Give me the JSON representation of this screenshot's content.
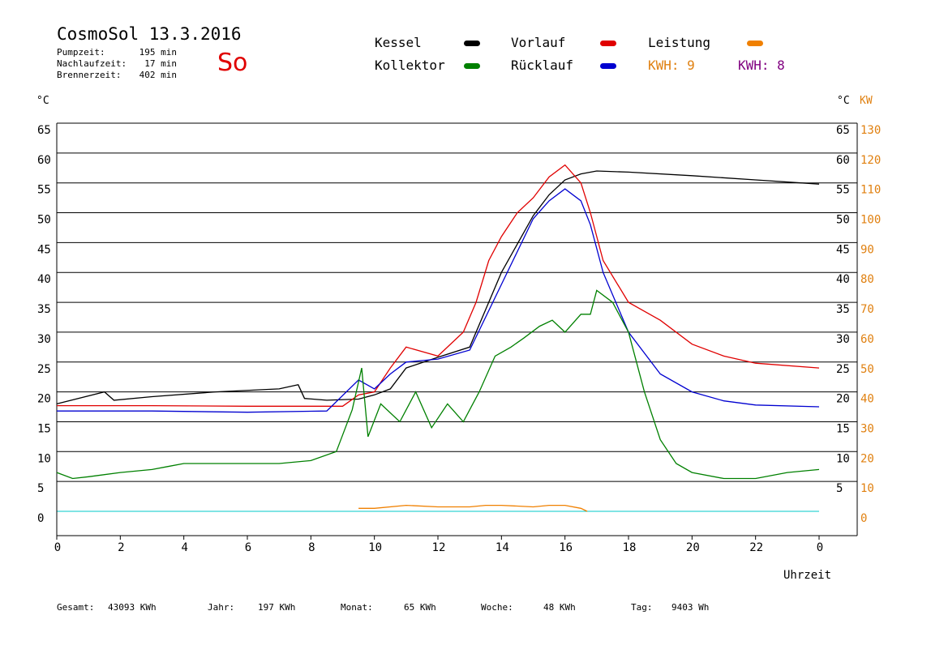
{
  "header": {
    "title": "CosmoSol 13.3.2016",
    "day": "So",
    "info": [
      {
        "label": "Pumpzeit:",
        "value": "195 min"
      },
      {
        "label": "Nachlaufzeit:",
        "value": "17 min"
      },
      {
        "label": "Brennerzeit:",
        "value": "402 min"
      }
    ]
  },
  "legend": {
    "kessel": {
      "label": "Kessel",
      "color": "#000000"
    },
    "vorlauf": {
      "label": "Vorlauf",
      "color": "#e00000"
    },
    "leistung": {
      "label": "Leistung",
      "color": "#f08000"
    },
    "kollektor": {
      "label": "Kollektor",
      "color": "#008000"
    },
    "ruecklauf": {
      "label": "Rücklauf",
      "color": "#0000d0"
    },
    "kwh1": {
      "label": "KWH: 9",
      "color": "#e08010"
    },
    "kwh2": {
      "label": "KWH: 8",
      "color": "#800080"
    }
  },
  "axes": {
    "left_unit": "°C",
    "right_unit_c": "°C",
    "right_unit_kw": "KW",
    "xlabel": "Uhrzeit"
  },
  "footer": [
    {
      "label": "Gesamt:",
      "value": "43093 KWh"
    },
    {
      "label": "Jahr:",
      "value": "197 KWh"
    },
    {
      "label": "Monat:",
      "value": "65 KWh"
    },
    {
      "label": "Woche:",
      "value": "48 KWh"
    },
    {
      "label": "Tag:",
      "value": "9403 Wh"
    }
  ],
  "chart_data": {
    "type": "line",
    "xlabel": "Uhrzeit",
    "ylabel": "°C",
    "y2label": "KW",
    "xlim": [
      0,
      24
    ],
    "ylim": [
      0,
      65
    ],
    "y2lim": [
      0,
      130
    ],
    "xticks": [
      "0",
      "2",
      "4",
      "6",
      "8",
      "10",
      "12",
      "14",
      "16",
      "18",
      "20",
      "22",
      "0"
    ],
    "yticks_left": [
      0,
      5,
      10,
      15,
      20,
      25,
      30,
      35,
      40,
      45,
      50,
      55,
      60,
      65
    ],
    "yticks_right_c": [
      5,
      10,
      15,
      20,
      25,
      30,
      35,
      40,
      45,
      50,
      55,
      60,
      65
    ],
    "yticks_right_kw": [
      0,
      10,
      20,
      30,
      40,
      50,
      60,
      70,
      80,
      90,
      100,
      110,
      120,
      130
    ],
    "grid": true,
    "series": [
      {
        "name": "Kessel",
        "color": "#000000",
        "x": [
          0,
          1.5,
          1.8,
          3,
          5,
          7,
          7.6,
          7.8,
          8.5,
          9.5,
          10,
          10.5,
          11,
          12,
          13,
          14,
          15,
          15.5,
          16,
          16.5,
          17,
          18,
          20,
          22,
          24
        ],
        "y": [
          18,
          20,
          18.6,
          19.2,
          20,
          20.5,
          21.2,
          18.9,
          18.6,
          18.8,
          19.5,
          20.5,
          24,
          25.8,
          27.5,
          40,
          49.5,
          53,
          55.5,
          56.5,
          57,
          56.8,
          56.2,
          55.5,
          54.8
        ]
      },
      {
        "name": "Vorlauf",
        "color": "#e00000",
        "x": [
          0,
          3,
          6,
          9,
          9.5,
          10,
          10.5,
          11,
          12,
          12.8,
          13.2,
          13.6,
          14,
          14.5,
          15,
          15.5,
          16,
          16.5,
          16.8,
          17.2,
          18,
          19,
          20,
          21,
          22,
          24
        ],
        "y": [
          17.7,
          17.7,
          17.6,
          17.6,
          19.5,
          20,
          24,
          27.5,
          26,
          30,
          35,
          42,
          46,
          50,
          52.5,
          56,
          58,
          55,
          50,
          42,
          35,
          32,
          28,
          26,
          24.8,
          24
        ]
      },
      {
        "name": "Rücklauf",
        "color": "#0000d0",
        "x": [
          0,
          3,
          6,
          8.5,
          9.5,
          10,
          10.5,
          11,
          12,
          13,
          14,
          15,
          15.5,
          16,
          16.5,
          16.8,
          17.2,
          18,
          19,
          20,
          21,
          22,
          24
        ],
        "y": [
          16.8,
          16.8,
          16.6,
          16.8,
          22,
          20.5,
          23,
          25,
          25.5,
          27,
          38,
          49,
          52,
          54,
          52,
          48,
          40,
          30,
          23,
          20,
          18.5,
          17.8,
          17.5
        ]
      },
      {
        "name": "Kollektor",
        "color": "#008000",
        "x": [
          0,
          0.5,
          1,
          2,
          3,
          3.5,
          4,
          5,
          6,
          7,
          8,
          8.8,
          9.3,
          9.6,
          9.8,
          10.2,
          10.8,
          11.3,
          11.8,
          12.3,
          12.8,
          13.3,
          13.8,
          14.3,
          14.7,
          15.2,
          15.6,
          16,
          16.5,
          16.8,
          17,
          17.5,
          18,
          18.5,
          19,
          19.5,
          20,
          21,
          22,
          23,
          24
        ],
        "y": [
          6.5,
          5.5,
          5.8,
          6.5,
          7,
          7.5,
          8,
          8,
          8,
          8,
          8.5,
          10,
          17,
          24,
          12.5,
          18,
          15,
          20,
          14,
          18,
          15,
          20,
          26,
          27.5,
          29,
          31,
          32,
          30,
          33,
          33,
          37,
          35,
          30,
          20,
          12,
          8,
          6.5,
          5.5,
          5.5,
          6.5,
          7
        ]
      },
      {
        "name": "Leistung",
        "color": "#f08000",
        "axis": "right",
        "x": [
          9.5,
          10,
          11,
          12,
          13,
          13.5,
          14,
          15,
          15.5,
          16,
          16.5,
          16.7
        ],
        "y": [
          1,
          1,
          2,
          1.5,
          1.5,
          2,
          2,
          1.5,
          2,
          2,
          1,
          0
        ]
      }
    ],
    "annotations": [
      "KWH: 9",
      "KWH: 8"
    ]
  }
}
